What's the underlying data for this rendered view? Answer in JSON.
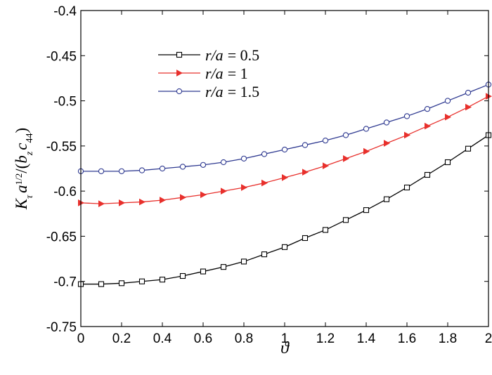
{
  "chart_data": {
    "type": "line",
    "xlabel": "ϑ",
    "ylabel": {
      "main": "K",
      "sub_main": "τ",
      "a": "a",
      "exponent": "1/2",
      "open": "/(",
      "b": "b",
      "sub_b": "z",
      "c": "c",
      "sub_c": "44",
      "close": ")"
    },
    "xlim": [
      0,
      2
    ],
    "ylim": [
      -0.75,
      -0.4
    ],
    "xticks": [
      "0",
      "0.2",
      "0.4",
      "0.6",
      "0.8",
      "1",
      "1.2",
      "1.4",
      "1.6",
      "1.8",
      "2"
    ],
    "yticks": [
      "-0.4",
      "-0.45",
      "-0.5",
      "-0.55",
      "-0.6",
      "-0.65",
      "-0.7",
      "-0.75"
    ],
    "grid": false,
    "legend_position": "top-left",
    "x": [
      0,
      0.1,
      0.2,
      0.3,
      0.4,
      0.5,
      0.6,
      0.7,
      0.8,
      0.9,
      1.0,
      1.1,
      1.2,
      1.3,
      1.4,
      1.5,
      1.6,
      1.7,
      1.8,
      1.9,
      2.0
    ],
    "series": [
      {
        "name": "r/a = 0.5",
        "label_var": "r/a",
        "label_value": "= 0.5",
        "color": "#000000",
        "marker": "square",
        "values": [
          -0.703,
          -0.703,
          -0.702,
          -0.7,
          -0.698,
          -0.694,
          -0.689,
          -0.684,
          -0.678,
          -0.67,
          -0.662,
          -0.652,
          -0.643,
          -0.632,
          -0.621,
          -0.609,
          -0.596,
          -0.582,
          -0.568,
          -0.553,
          -0.538
        ]
      },
      {
        "name": "r/a = 1",
        "label_var": "r/a",
        "label_value": "= 1",
        "color": "#e8302c",
        "marker": "triangle-right",
        "values": [
          -0.613,
          -0.614,
          -0.613,
          -0.612,
          -0.61,
          -0.607,
          -0.604,
          -0.6,
          -0.596,
          -0.591,
          -0.585,
          -0.579,
          -0.572,
          -0.564,
          -0.556,
          -0.547,
          -0.538,
          -0.528,
          -0.518,
          -0.507,
          -0.495
        ]
      },
      {
        "name": "r/a = 1.5",
        "label_var": "r/a",
        "label_value": "= 1.5",
        "color": "#2f3a91",
        "marker": "circle",
        "values": [
          -0.578,
          -0.578,
          -0.578,
          -0.577,
          -0.575,
          -0.573,
          -0.571,
          -0.568,
          -0.564,
          -0.559,
          -0.554,
          -0.549,
          -0.544,
          -0.538,
          -0.531,
          -0.524,
          -0.517,
          -0.509,
          -0.5,
          -0.491,
          -0.482
        ]
      }
    ]
  }
}
